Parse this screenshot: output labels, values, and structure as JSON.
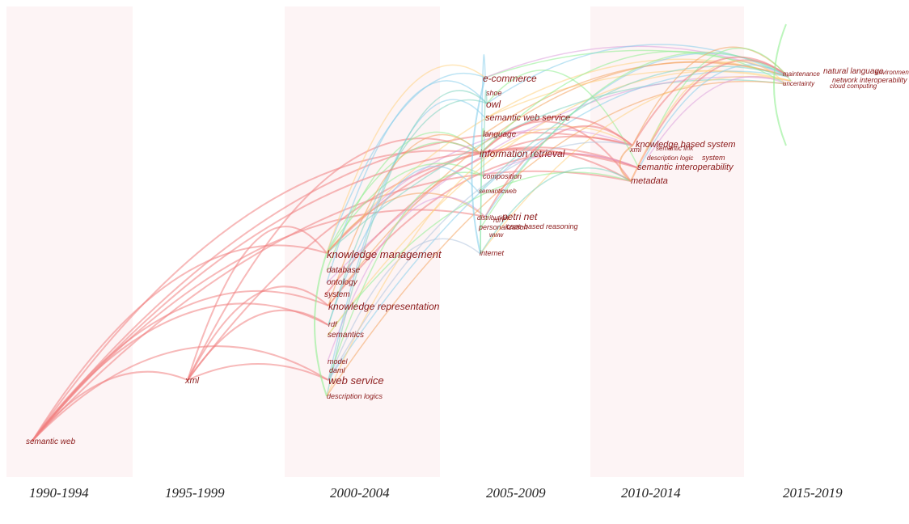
{
  "periods": [
    "1990-1994",
    "1995-1999",
    "2000-2004",
    "2005-2009",
    "2010-2014",
    "2015-2019"
  ],
  "keywords": {
    "p1990": [
      "semantic web"
    ],
    "p1995": [
      "xml"
    ],
    "p2000": [
      "knowledge management",
      "database",
      "ontology",
      "system",
      "knowledge representation",
      "rdf",
      "semantics",
      "model",
      "daml",
      "web service",
      "description logics"
    ],
    "p2005": [
      "e-commerce",
      "shoe",
      "owl",
      "semantic web service",
      "language",
      "information retrieval",
      "composition",
      "semanticweb",
      "petri net",
      "distribution",
      "rdf",
      "personalization",
      "case-based reasoning",
      "www",
      "internet"
    ],
    "p2010": [
      "knowledge based system",
      "xml",
      "semantic link",
      "description logic",
      "system",
      "semantic interoperability",
      "metadata"
    ],
    "p2015": [
      "maintenance",
      "natural language",
      "environment",
      "network interoperability",
      "uncertainty",
      "cloud computing"
    ]
  },
  "colors": {
    "band": "#fdf4f5",
    "label": "#8b1a1a",
    "edge_palette": [
      "#f08080",
      "#87ceeb",
      "#90ee90",
      "#dda0dd",
      "#ffd27f",
      "#7fd3c0",
      "#f4a460",
      "#b0c4de"
    ]
  }
}
